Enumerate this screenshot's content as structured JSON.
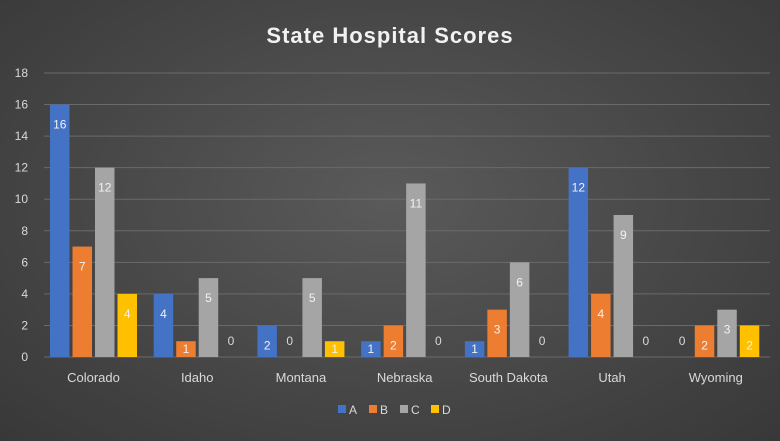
{
  "chart_data": {
    "type": "bar",
    "title": "State Hospital Scores",
    "categories": [
      "Colorado",
      "Idaho",
      "Montana",
      "Nebraska",
      "South Dakota",
      "Utah",
      "Wyoming"
    ],
    "series": [
      {
        "name": "A",
        "color": "#4472c4",
        "values": [
          16,
          4,
          2,
          1,
          1,
          12,
          0
        ]
      },
      {
        "name": "B",
        "color": "#ed7d31",
        "values": [
          7,
          1,
          0,
          2,
          3,
          4,
          2
        ]
      },
      {
        "name": "C",
        "color": "#a5a5a5",
        "values": [
          12,
          5,
          5,
          11,
          6,
          9,
          3
        ]
      },
      {
        "name": "D",
        "color": "#ffc000",
        "values": [
          4,
          0,
          1,
          0,
          0,
          0,
          2
        ]
      }
    ],
    "ylim": [
      0,
      18
    ],
    "yticks": [
      0,
      2,
      4,
      6,
      8,
      10,
      12,
      14,
      16,
      18
    ],
    "grid": true,
    "legend": "bottom",
    "xlabel": "",
    "ylabel": ""
  }
}
